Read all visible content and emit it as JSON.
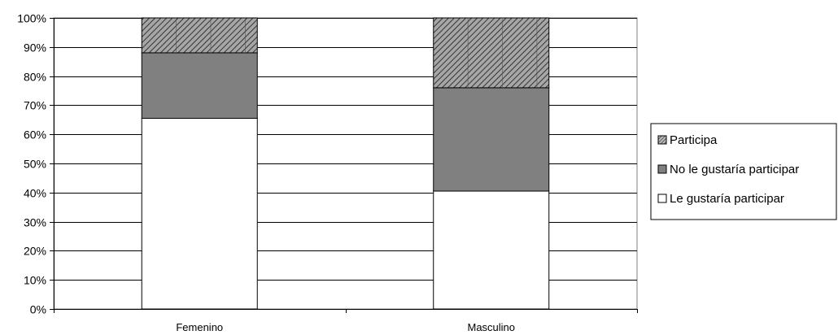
{
  "chart_data": {
    "type": "bar",
    "stacked": true,
    "percent": true,
    "categories": [
      "Femenino",
      "Masculino"
    ],
    "series": [
      {
        "name": "Le gustaría participar",
        "values": [
          65.5,
          40.5
        ],
        "fill": "#ffffff",
        "pattern": "none"
      },
      {
        "name": "No le gustaría participar",
        "values": [
          22.5,
          35.5
        ],
        "fill": "#808080",
        "pattern": "none"
      },
      {
        "name": "Participa",
        "values": [
          12.0,
          24.0
        ],
        "fill": "#808080",
        "pattern": "diagonal-hatch"
      }
    ],
    "legend_order": [
      "Participa",
      "No le gustaría participar",
      "Le gustaría participar"
    ],
    "ylim": [
      0,
      100
    ],
    "yticks": [
      "0%",
      "10%",
      "20%",
      "30%",
      "40%",
      "50%",
      "60%",
      "70%",
      "80%",
      "90%",
      "100%"
    ],
    "grid": true,
    "legend_position": "right",
    "title": "",
    "xlabel": "",
    "ylabel": ""
  }
}
